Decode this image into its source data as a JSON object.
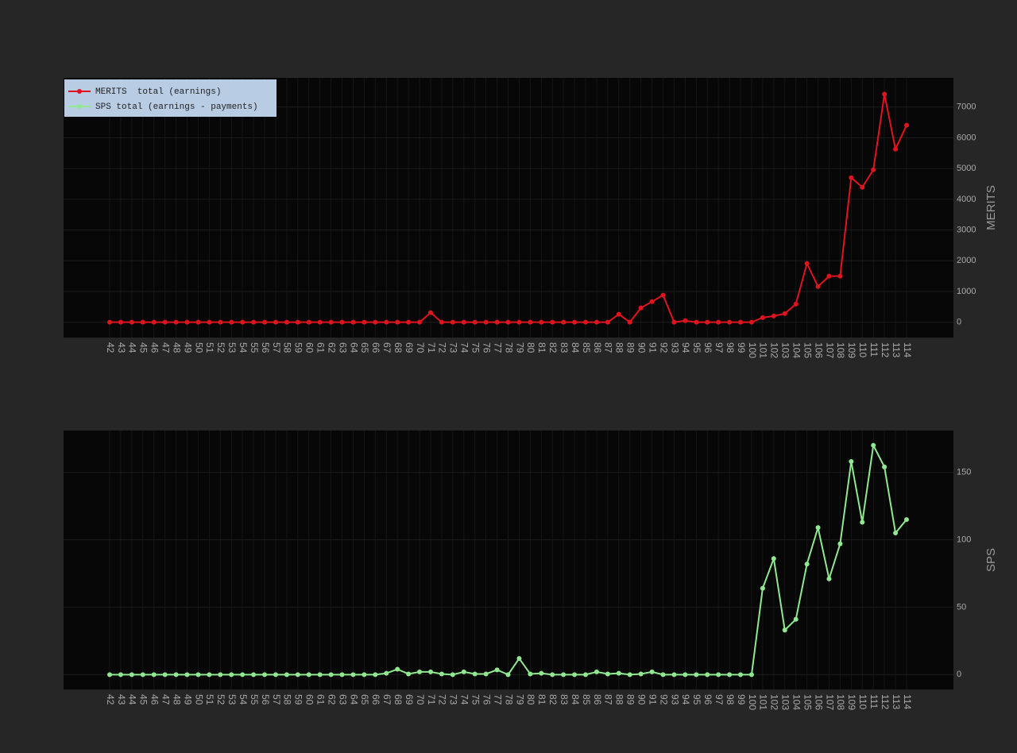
{
  "chart_data": [
    {
      "type": "line",
      "y_label": "MERITS",
      "grid": true,
      "categories": [
        42,
        43,
        44,
        45,
        46,
        47,
        48,
        49,
        50,
        51,
        52,
        53,
        54,
        55,
        56,
        57,
        58,
        59,
        60,
        61,
        62,
        63,
        64,
        65,
        66,
        67,
        68,
        69,
        70,
        71,
        72,
        73,
        74,
        75,
        76,
        77,
        78,
        79,
        80,
        81,
        82,
        83,
        84,
        85,
        86,
        87,
        88,
        89,
        90,
        91,
        92,
        93,
        94,
        95,
        96,
        97,
        98,
        99,
        100,
        101,
        102,
        103,
        104,
        105,
        106,
        107,
        108,
        109,
        110,
        111,
        112,
        113,
        114
      ],
      "series": [
        {
          "name": "MERITS  total (earnings)",
          "color": "#e0141e",
          "values": [
            0,
            0,
            0,
            0,
            0,
            0,
            0,
            0,
            0,
            0,
            0,
            0,
            0,
            0,
            0,
            0,
            0,
            0,
            0,
            0,
            0,
            0,
            0,
            0,
            0,
            0,
            0,
            0,
            0,
            310,
            0,
            0,
            0,
            0,
            0,
            0,
            0,
            0,
            0,
            0,
            0,
            0,
            0,
            0,
            0,
            0,
            260,
            0,
            465,
            670,
            880,
            0,
            50,
            0,
            0,
            0,
            0,
            0,
            0,
            150,
            200,
            280,
            590,
            1910,
            1160,
            1500,
            1500,
            4700,
            4390,
            4960,
            7420,
            5630,
            6410
          ]
        }
      ],
      "ylim": [
        -500,
        7950
      ],
      "yticks": [
        0,
        1000,
        2000,
        3000,
        4000,
        5000,
        6000,
        7000
      ]
    },
    {
      "type": "line",
      "y_label": "SPS",
      "grid": true,
      "categories": [
        42,
        43,
        44,
        45,
        46,
        47,
        48,
        49,
        50,
        51,
        52,
        53,
        54,
        55,
        56,
        57,
        58,
        59,
        60,
        61,
        62,
        63,
        64,
        65,
        66,
        67,
        68,
        69,
        70,
        71,
        72,
        73,
        74,
        75,
        76,
        77,
        78,
        79,
        80,
        81,
        82,
        83,
        84,
        85,
        86,
        87,
        88,
        89,
        90,
        91,
        92,
        93,
        94,
        95,
        96,
        97,
        98,
        99,
        100,
        101,
        102,
        103,
        104,
        105,
        106,
        107,
        108,
        109,
        110,
        111,
        112,
        113,
        114
      ],
      "series": [
        {
          "name": "SPS total (earnings - payments)",
          "color": "#90e890",
          "values": [
            0,
            0,
            0,
            0,
            0,
            0,
            0,
            0,
            0,
            0,
            0,
            0,
            0,
            0,
            0,
            0,
            0,
            0,
            0,
            0,
            0,
            0,
            0,
            0,
            0,
            1,
            4,
            0.5,
            2,
            2,
            0.5,
            0,
            2,
            0.5,
            0.5,
            3.5,
            0,
            12,
            0.5,
            1,
            0,
            0,
            0,
            0,
            2,
            0.5,
            1,
            0,
            0.5,
            2,
            0,
            0,
            0,
            0,
            0,
            0,
            0,
            0,
            0,
            64,
            86,
            33,
            41,
            82,
            109,
            71,
            97,
            158,
            113,
            170,
            154,
            105,
            115
          ]
        }
      ],
      "ylim": [
        -11,
        181
      ],
      "yticks": [
        0,
        50,
        100,
        150
      ]
    }
  ]
}
